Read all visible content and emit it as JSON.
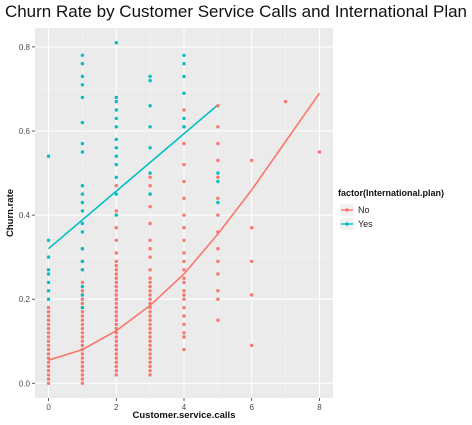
{
  "chart_data": {
    "type": "scatter",
    "title": "Churn Rate by Customer Service Calls and International Plan",
    "xlabel": "Customer.service.calls",
    "ylabel": "Churn.rate",
    "xlim": [
      -0.4,
      8.4
    ],
    "ylim": [
      -0.035,
      0.845
    ],
    "x_ticks": [
      0,
      2,
      4,
      6,
      8
    ],
    "y_ticks": [
      0.0,
      0.2,
      0.4,
      0.6,
      0.8
    ],
    "y_tick_labels": [
      "0.0",
      "0.2",
      "0.4",
      "0.6",
      "0.8"
    ],
    "grid": true,
    "background": "#ebebeb",
    "legend": {
      "title": "factor(International.plan)",
      "position": "right"
    },
    "series": [
      {
        "name": "No",
        "color": "#f8766d",
        "points": {
          "0": [
            0.0,
            0.01,
            0.02,
            0.03,
            0.04,
            0.05,
            0.06,
            0.07,
            0.08,
            0.09,
            0.1,
            0.11,
            0.12,
            0.13,
            0.14,
            0.15,
            0.16,
            0.17,
            0.18
          ],
          "1": [
            0.0,
            0.01,
            0.02,
            0.03,
            0.04,
            0.05,
            0.06,
            0.07,
            0.08,
            0.09,
            0.1,
            0.11,
            0.12,
            0.13,
            0.14,
            0.15,
            0.16,
            0.17,
            0.18,
            0.19,
            0.2,
            0.21,
            0.22,
            0.24,
            0.27,
            0.29,
            0.32
          ],
          "2": [
            0.02,
            0.03,
            0.04,
            0.05,
            0.06,
            0.07,
            0.08,
            0.09,
            0.1,
            0.11,
            0.12,
            0.13,
            0.14,
            0.15,
            0.16,
            0.17,
            0.18,
            0.19,
            0.2,
            0.21,
            0.22,
            0.23,
            0.24,
            0.25,
            0.26,
            0.27,
            0.28,
            0.29,
            0.31,
            0.34,
            0.37,
            0.41,
            0.47
          ],
          "3": [
            0.02,
            0.03,
            0.04,
            0.05,
            0.06,
            0.07,
            0.08,
            0.09,
            0.1,
            0.11,
            0.12,
            0.13,
            0.14,
            0.15,
            0.16,
            0.17,
            0.18,
            0.19,
            0.2,
            0.21,
            0.22,
            0.23,
            0.24,
            0.25,
            0.27,
            0.3,
            0.32,
            0.34,
            0.38,
            0.42,
            0.45,
            0.47,
            0.49
          ],
          "4": [
            0.08,
            0.11,
            0.12,
            0.14,
            0.16,
            0.18,
            0.2,
            0.21,
            0.22,
            0.24,
            0.25,
            0.27,
            0.29,
            0.31,
            0.34,
            0.37,
            0.4,
            0.44,
            0.48,
            0.52,
            0.57,
            0.61,
            0.65
          ],
          "5": [
            0.15,
            0.2,
            0.22,
            0.26,
            0.29,
            0.32,
            0.36,
            0.4,
            0.44,
            0.49,
            0.53,
            0.57,
            0.61,
            0.66
          ],
          "6": [
            0.09,
            0.21,
            0.29,
            0.37,
            0.53
          ],
          "7": [
            0.67
          ],
          "8": [
            0.55
          ]
        },
        "trend": {
          "x": [
            0,
            1,
            2,
            3,
            4,
            5,
            6,
            7,
            8
          ],
          "y": [
            0.055,
            0.08,
            0.125,
            0.185,
            0.26,
            0.355,
            0.46,
            0.575,
            0.69
          ]
        }
      },
      {
        "name": "Yes",
        "color": "#00bfc4",
        "points": {
          "0": [
            0.2,
            0.22,
            0.24,
            0.26,
            0.27,
            0.3,
            0.34,
            0.54
          ],
          "1": [
            0.18,
            0.21,
            0.23,
            0.27,
            0.29,
            0.32,
            0.36,
            0.38,
            0.41,
            0.43,
            0.45,
            0.47,
            0.55,
            0.57,
            0.62,
            0.68,
            0.71,
            0.73,
            0.76,
            0.78
          ],
          "2": [
            0.4,
            0.45,
            0.49,
            0.52,
            0.54,
            0.56,
            0.58,
            0.61,
            0.63,
            0.65,
            0.67,
            0.68,
            0.81
          ],
          "3": [
            0.45,
            0.5,
            0.56,
            0.61,
            0.66,
            0.72,
            0.73
          ],
          "4": [
            0.61,
            0.63,
            0.69,
            0.73,
            0.76,
            0.78
          ],
          "5": [
            0.43,
            0.48,
            0.5
          ]
        },
        "trend": {
          "x": [
            0,
            5
          ],
          "y": [
            0.32,
            0.662
          ]
        }
      }
    ]
  }
}
